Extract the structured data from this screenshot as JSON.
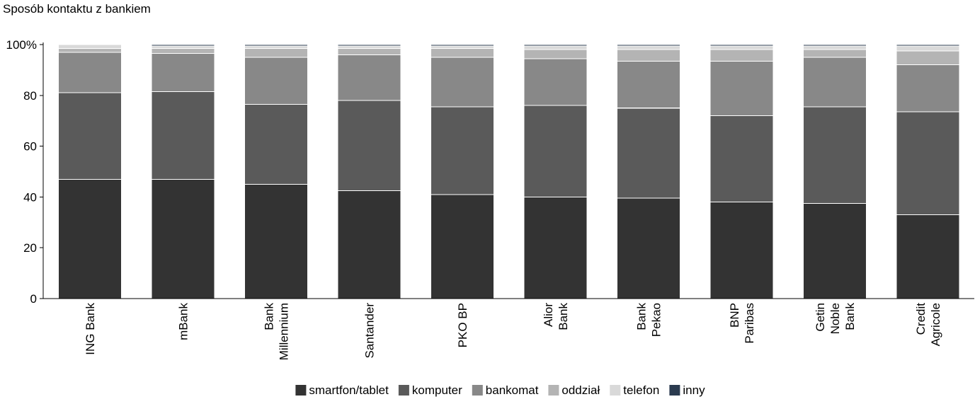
{
  "chart_data": {
    "type": "bar",
    "stacked": true,
    "title": "Sposób kontaktu z bankiem",
    "xlabel": "",
    "ylabel": "",
    "ylim": [
      0,
      100
    ],
    "yticks": [
      {
        "value": 0,
        "label": "0"
      },
      {
        "value": 20,
        "label": "20"
      },
      {
        "value": 40,
        "label": "40"
      },
      {
        "value": 60,
        "label": "60"
      },
      {
        "value": 80,
        "label": "80"
      },
      {
        "value": 100,
        "label": "100%"
      }
    ],
    "grid": false,
    "legend_position": "bottom",
    "categories": [
      [
        "ING Bank"
      ],
      [
        "mBank"
      ],
      [
        "Bank",
        "Millennium"
      ],
      [
        "Santander"
      ],
      [
        "PKO BP"
      ],
      [
        "Alior",
        "Bank"
      ],
      [
        "Bank",
        "Pekao"
      ],
      [
        "BNP",
        "Paribas"
      ],
      [
        "Getin",
        "Noble",
        "Bank"
      ],
      [
        "Credit",
        "Agricole"
      ]
    ],
    "series": [
      {
        "name": "smartfon/tablet",
        "color": "#333333",
        "values": [
          47,
          47,
          45,
          42.5,
          41,
          40,
          39.5,
          38,
          37.5,
          33
        ]
      },
      {
        "name": "komputer",
        "color": "#5a5a5a",
        "values": [
          34,
          34.5,
          31.5,
          35.5,
          34.5,
          36,
          35.5,
          34,
          38,
          40.5
        ]
      },
      {
        "name": "bankomat",
        "color": "#888888",
        "values": [
          16,
          15,
          18.5,
          18,
          19.5,
          18.5,
          18.5,
          21.5,
          19.5,
          18.5
        ]
      },
      {
        "name": "oddział",
        "color": "#b4b4b4",
        "values": [
          1.5,
          2,
          3.5,
          2.5,
          3.5,
          3.5,
          4.5,
          4.5,
          3,
          5.5
        ]
      },
      {
        "name": "telefon",
        "color": "#d9d9d9",
        "values": [
          1.5,
          1,
          1,
          1,
          1,
          1.5,
          1.5,
          1.5,
          1.5,
          2
        ]
      },
      {
        "name": "inny",
        "color": "#2b3b4f",
        "values": [
          0,
          0.5,
          0.5,
          0.5,
          0.5,
          0.5,
          0.5,
          0.5,
          0.5,
          0.5
        ]
      }
    ]
  }
}
